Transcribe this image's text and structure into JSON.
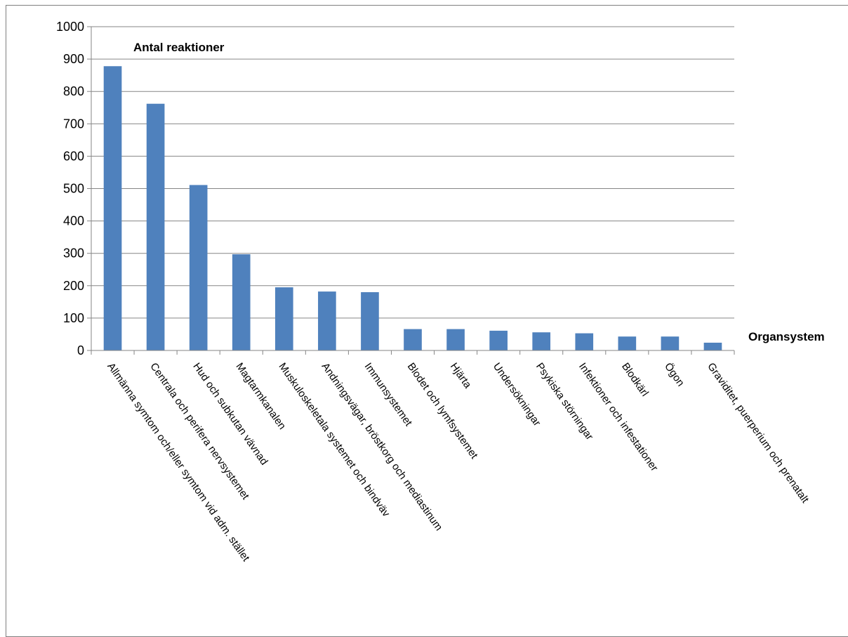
{
  "chart_data": {
    "type": "bar",
    "title": "",
    "ylabel": "Antal reaktioner",
    "xlabel": "Organsystem",
    "ylim": [
      0,
      1000
    ],
    "yticks": [
      0,
      100,
      200,
      300,
      400,
      500,
      600,
      700,
      800,
      900,
      1000
    ],
    "grid": true,
    "bar_color": "#4f81bd",
    "categories": [
      "Allmänna symtom och/eller symtom vid adm. stället",
      "Centrala och perifera nervsystemet",
      "Hud och subkutan vävnad",
      "Magtarmkanalen",
      "Muskuloskeletala systemet och bindväv",
      "Andningsvägar, bröstkorg och mediastinum",
      "Immunsystemet",
      "Blodet och lymfsystemet",
      "Hjärta",
      "Undersökningar",
      "Psykiska störningar",
      "Infektioner och infestationer",
      "Blodkärl",
      "Ögon",
      "Graviditet, puerperium och prenatalt"
    ],
    "values": [
      878,
      762,
      511,
      297,
      195,
      182,
      180,
      66,
      66,
      61,
      56,
      53,
      43,
      43,
      24
    ]
  }
}
